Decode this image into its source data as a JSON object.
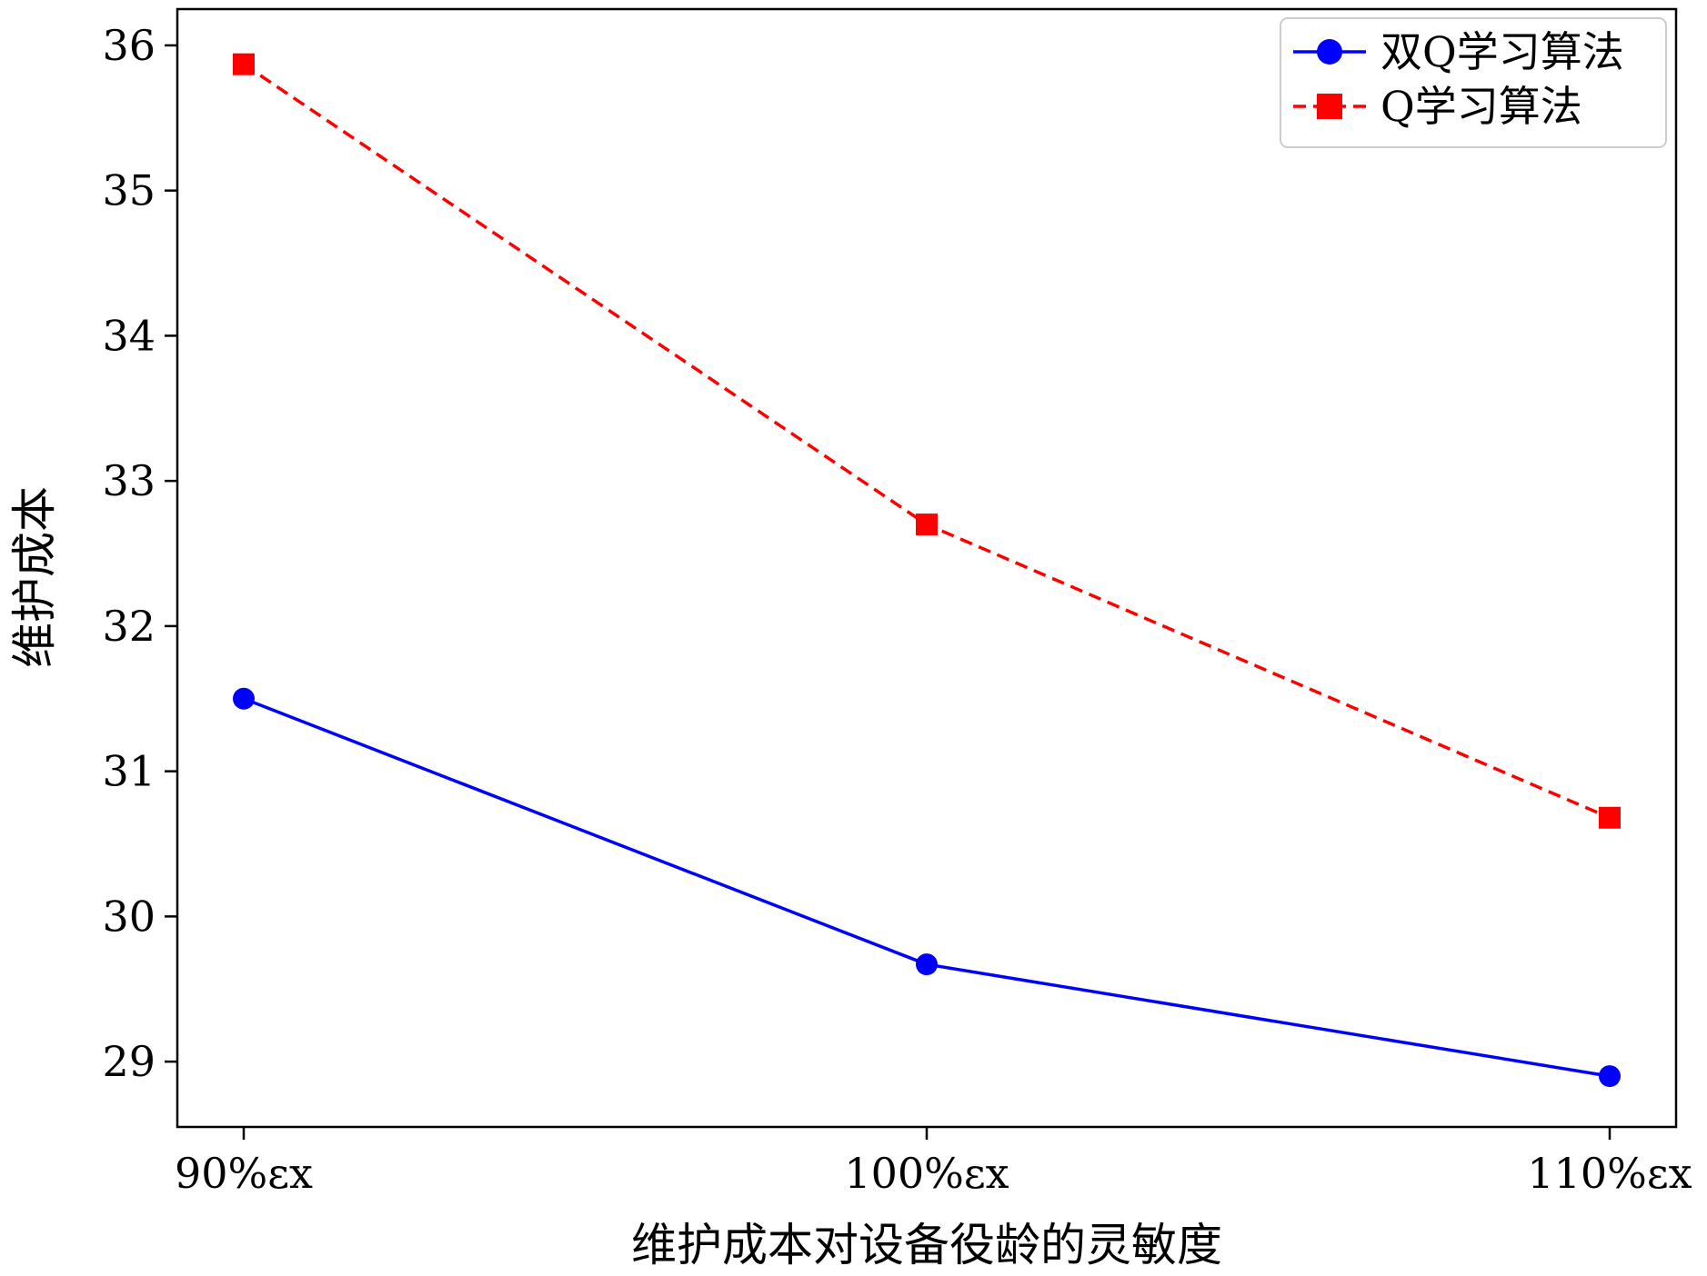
{
  "chart_data": {
    "type": "line",
    "categories": [
      "90%εx",
      "100%εx",
      "110%εx"
    ],
    "series": [
      {
        "name": "双Q学习算法",
        "values": [
          31.5,
          29.67,
          28.9
        ],
        "color": "#0000ff",
        "line_style": "solid",
        "marker": "circle"
      },
      {
        "name": "Q学习算法",
        "values": [
          35.87,
          32.7,
          30.68
        ],
        "color": "#ff0000",
        "line_style": "dashed",
        "marker": "square"
      }
    ],
    "xlabel": "维护成本对设备役龄的灵敏度",
    "ylabel": "维护成本",
    "yticks": [
      29,
      30,
      31,
      32,
      33,
      34,
      35,
      36
    ],
    "ylim": [
      28.55,
      36.25
    ],
    "grid": false,
    "legend_position": "top-right"
  }
}
